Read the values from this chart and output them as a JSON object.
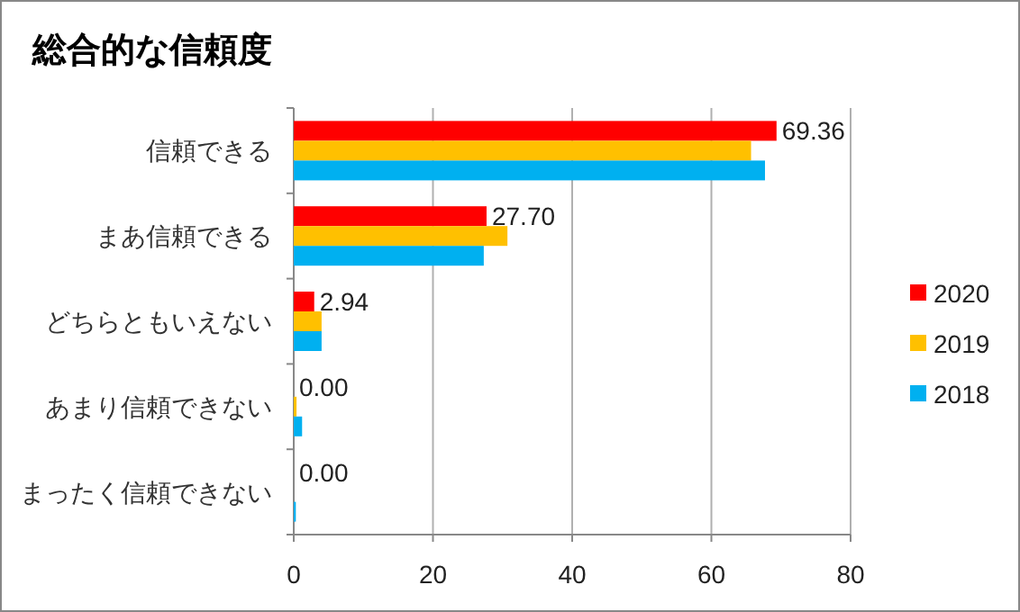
{
  "chart_data": {
    "type": "bar",
    "orientation": "horizontal",
    "title": "総合的な信頼度",
    "categories": [
      "信頼できる",
      "まあ信頼できる",
      "どちらともいえない",
      "あまり信頼できない",
      "まったく信頼できない"
    ],
    "series": [
      {
        "name": "2020",
        "color": "#ff0000",
        "values": [
          69.36,
          27.7,
          2.94,
          0.0,
          0.0
        ],
        "value_labels": [
          "69.36",
          "27.70",
          "2.94",
          "0.00",
          "0.00"
        ]
      },
      {
        "name": "2019",
        "color": "#ffc000",
        "values": [
          65.7,
          30.7,
          4.0,
          0.4,
          0.0
        ]
      },
      {
        "name": "2018",
        "color": "#00b0f0",
        "values": [
          67.7,
          27.3,
          4.0,
          1.2,
          0.3
        ]
      }
    ],
    "xlim": [
      0,
      80
    ],
    "xticks": [
      0,
      20,
      40,
      60,
      80
    ],
    "grid": "x",
    "legend": "right"
  }
}
